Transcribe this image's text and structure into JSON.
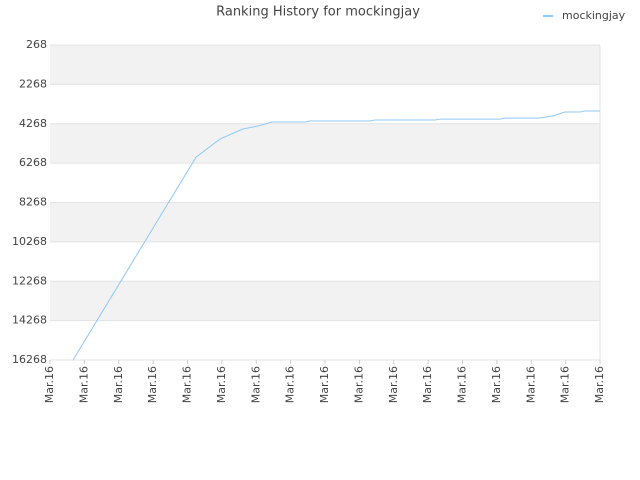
{
  "chart_data": {
    "type": "line",
    "title": "Ranking History for mockingjay",
    "x": [
      0.67,
      4.25,
      4.95,
      5.61,
      6.05,
      6.46,
      7.42,
      7.56,
      9.31,
      9.45,
      11.2,
      11.35,
      13.09,
      13.24,
      14.2,
      14.63,
      14.98,
      15.42,
      15.56,
      16
    ],
    "series": [
      {
        "name": "mockingjay",
        "color": "#90c8f6",
        "values": [
          16268,
          5960,
          5040,
          4535,
          4383,
          4180,
          4180,
          4130,
          4130,
          4080,
          4080,
          4030,
          4030,
          3980,
          3980,
          3875,
          3670,
          3670,
          3620,
          3620
        ]
      }
    ],
    "xlim": [
      0,
      16
    ],
    "xticks": [
      {
        "value": 0,
        "label": "Mar.16"
      },
      {
        "value": 1,
        "label": "Mar.16"
      },
      {
        "value": 2,
        "label": "Mar.16"
      },
      {
        "value": 3,
        "label": "Mar.16"
      },
      {
        "value": 4,
        "label": "Mar.16"
      },
      {
        "value": 5,
        "label": "Mar.16"
      },
      {
        "value": 6,
        "label": "Mar.16"
      },
      {
        "value": 7,
        "label": "Mar.16"
      },
      {
        "value": 8,
        "label": "Mar.16"
      },
      {
        "value": 9,
        "label": "Mar.16"
      },
      {
        "value": 10,
        "label": "Mar.16"
      },
      {
        "value": 11,
        "label": "Mar.16"
      },
      {
        "value": 12,
        "label": "Mar.16"
      },
      {
        "value": 13,
        "label": "Mar.16"
      },
      {
        "value": 14,
        "label": "Mar.16"
      },
      {
        "value": 15,
        "label": "Mar.16"
      },
      {
        "value": 16,
        "label": "Mar.16"
      }
    ],
    "ylim": [
      16268,
      268
    ],
    "yticks": [
      268,
      2268,
      4268,
      6268,
      8268,
      10268,
      12268,
      14268,
      16268
    ],
    "grid": true,
    "legend": "top-right"
  }
}
